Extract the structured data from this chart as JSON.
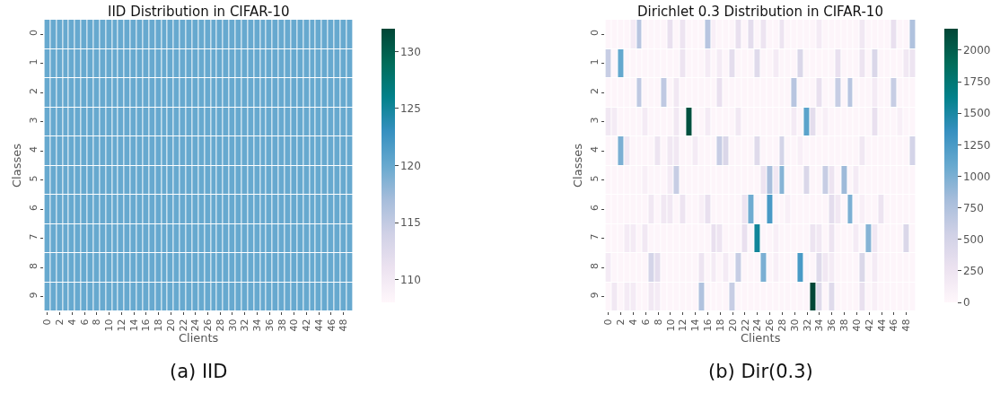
{
  "chart_data": [
    {
      "type": "heatmap",
      "title": "IID Distribution in CIFAR-10",
      "xlabel": "Clients",
      "ylabel": "Classes",
      "annotations": [
        "(a) IID"
      ],
      "categories": [
        "0",
        null,
        "2",
        null,
        "4",
        null,
        "6",
        null,
        "8",
        null,
        "10",
        null,
        "12",
        null,
        "14",
        null,
        "16",
        null,
        "18",
        null,
        "20",
        null,
        "22",
        null,
        "24",
        null,
        "26",
        null,
        "28",
        null,
        "30",
        null,
        "32",
        null,
        "34",
        null,
        "36",
        null,
        "38",
        null,
        "40",
        null,
        "42",
        null,
        "44",
        null,
        "46",
        null,
        "48",
        null
      ],
      "y_categories": [
        "0",
        "1",
        "2",
        "3",
        "4",
        "5",
        "6",
        "7",
        "8",
        "9"
      ],
      "clim": [
        108,
        132
      ],
      "cticks": [
        110,
        115,
        120,
        125,
        130
      ],
      "cells": [
        [
          120,
          120,
          120,
          120,
          120,
          120,
          120,
          120,
          120,
          120,
          120,
          120,
          120,
          120,
          120,
          120,
          120,
          120,
          120,
          120,
          120,
          120,
          120,
          120,
          120,
          120,
          120,
          120,
          120,
          120,
          120,
          120,
          120,
          120,
          120,
          120,
          120,
          120,
          120,
          120,
          120,
          120,
          120,
          120,
          120,
          120,
          120,
          120,
          120,
          120
        ],
        [
          120,
          120,
          120,
          120,
          120,
          120,
          120,
          120,
          120,
          120,
          120,
          120,
          120,
          120,
          120,
          120,
          120,
          120,
          120,
          120,
          120,
          120,
          120,
          120,
          120,
          120,
          120,
          120,
          120,
          120,
          120,
          120,
          120,
          120,
          120,
          120,
          120,
          120,
          120,
          120,
          120,
          120,
          120,
          120,
          120,
          120,
          120,
          120,
          120,
          120
        ],
        [
          120,
          120,
          120,
          120,
          120,
          120,
          120,
          120,
          120,
          120,
          120,
          120,
          120,
          120,
          120,
          120,
          120,
          120,
          120,
          120,
          120,
          120,
          120,
          120,
          120,
          120,
          120,
          120,
          120,
          120,
          120,
          120,
          120,
          120,
          120,
          120,
          120,
          120,
          120,
          120,
          120,
          120,
          120,
          120,
          120,
          120,
          120,
          120,
          120,
          120
        ],
        [
          120,
          120,
          120,
          120,
          120,
          120,
          120,
          120,
          120,
          120,
          120,
          120,
          120,
          120,
          120,
          120,
          120,
          120,
          120,
          120,
          120,
          120,
          120,
          120,
          120,
          120,
          120,
          120,
          120,
          120,
          120,
          120,
          120,
          120,
          120,
          120,
          120,
          120,
          120,
          120,
          120,
          120,
          120,
          120,
          120,
          120,
          120,
          120,
          120,
          120
        ],
        [
          120,
          120,
          120,
          120,
          120,
          120,
          120,
          120,
          120,
          120,
          120,
          120,
          120,
          120,
          120,
          120,
          120,
          120,
          120,
          120,
          120,
          120,
          120,
          120,
          120,
          120,
          120,
          120,
          120,
          120,
          120,
          120,
          120,
          120,
          120,
          120,
          120,
          120,
          120,
          120,
          120,
          120,
          120,
          120,
          120,
          120,
          120,
          120,
          120,
          120
        ],
        [
          120,
          120,
          120,
          120,
          120,
          120,
          120,
          120,
          120,
          120,
          120,
          120,
          120,
          120,
          120,
          120,
          120,
          120,
          120,
          120,
          120,
          120,
          120,
          120,
          120,
          120,
          120,
          120,
          120,
          120,
          120,
          120,
          120,
          120,
          120,
          120,
          120,
          120,
          120,
          120,
          120,
          120,
          120,
          120,
          120,
          120,
          120,
          120,
          120,
          120
        ],
        [
          120,
          120,
          120,
          120,
          120,
          120,
          120,
          120,
          120,
          120,
          120,
          120,
          120,
          120,
          120,
          120,
          120,
          120,
          120,
          120,
          120,
          120,
          120,
          120,
          120,
          120,
          120,
          120,
          120,
          120,
          120,
          120,
          120,
          120,
          120,
          120,
          120,
          120,
          120,
          120,
          120,
          120,
          120,
          120,
          120,
          120,
          120,
          120,
          120,
          120
        ],
        [
          120,
          120,
          120,
          120,
          120,
          120,
          120,
          120,
          120,
          120,
          120,
          120,
          120,
          120,
          120,
          120,
          120,
          120,
          120,
          120,
          120,
          120,
          120,
          120,
          120,
          120,
          120,
          120,
          120,
          120,
          120,
          120,
          120,
          120,
          120,
          120,
          120,
          120,
          120,
          120,
          120,
          120,
          120,
          120,
          120,
          120,
          120,
          120,
          120,
          120
        ],
        [
          120,
          120,
          120,
          120,
          120,
          120,
          120,
          120,
          120,
          120,
          120,
          120,
          120,
          120,
          120,
          120,
          120,
          120,
          120,
          120,
          120,
          120,
          120,
          120,
          120,
          120,
          120,
          120,
          120,
          120,
          120,
          120,
          120,
          120,
          120,
          120,
          120,
          120,
          120,
          120,
          120,
          120,
          120,
          120,
          120,
          120,
          120,
          120,
          120,
          120
        ],
        [
          120,
          120,
          120,
          120,
          120,
          120,
          120,
          120,
          120,
          120,
          120,
          120,
          120,
          120,
          120,
          120,
          120,
          120,
          120,
          120,
          120,
          120,
          120,
          120,
          120,
          120,
          120,
          120,
          120,
          120,
          120,
          120,
          120,
          120,
          120,
          120,
          120,
          120,
          120,
          120,
          120,
          120,
          120,
          120,
          120,
          120,
          120,
          120,
          120,
          120
        ]
      ]
    },
    {
      "type": "heatmap",
      "title": "Dirichlet 0.3 Distribution in CIFAR-10",
      "xlabel": "Clients",
      "ylabel": "Classes",
      "annotations": [
        "(b) Dir(0.3)"
      ],
      "categories": [
        "0",
        null,
        "2",
        null,
        "4",
        null,
        "6",
        null,
        "8",
        null,
        "10",
        null,
        "12",
        null,
        "14",
        null,
        "16",
        null,
        "18",
        null,
        "20",
        null,
        "22",
        null,
        "24",
        null,
        "26",
        null,
        "28",
        null,
        "30",
        null,
        "32",
        null,
        "34",
        null,
        "36",
        null,
        "38",
        null,
        "40",
        null,
        "42",
        null,
        "44",
        null,
        "46",
        null,
        "48",
        null
      ],
      "y_categories": [
        "0",
        "1",
        "2",
        "3",
        "4",
        "5",
        "6",
        "7",
        "8",
        "9"
      ],
      "clim": [
        0,
        2170
      ],
      "cticks": [
        0,
        250,
        500,
        750,
        1000,
        1250,
        1500,
        1750,
        2000
      ],
      "cells": [
        [
          30,
          30,
          30,
          30,
          150,
          700,
          30,
          30,
          30,
          30,
          300,
          30,
          250,
          30,
          30,
          30,
          700,
          100,
          30,
          30,
          30,
          300,
          30,
          350,
          30,
          250,
          30,
          30,
          250,
          30,
          30,
          30,
          30,
          30,
          150,
          30,
          30,
          30,
          30,
          30,
          30,
          200,
          30,
          30,
          30,
          30,
          300,
          30,
          30,
          750
        ],
        [
          600,
          30,
          1100,
          30,
          30,
          30,
          30,
          30,
          30,
          30,
          30,
          30,
          250,
          30,
          30,
          30,
          150,
          30,
          150,
          30,
          350,
          30,
          30,
          30,
          400,
          30,
          30,
          150,
          30,
          30,
          30,
          450,
          30,
          30,
          30,
          30,
          30,
          300,
          30,
          30,
          30,
          250,
          30,
          450,
          30,
          30,
          30,
          30,
          200,
          250
        ],
        [
          30,
          30,
          30,
          30,
          30,
          650,
          30,
          30,
          30,
          650,
          30,
          200,
          30,
          30,
          30,
          30,
          30,
          30,
          300,
          30,
          30,
          30,
          30,
          30,
          30,
          30,
          30,
          30,
          30,
          30,
          700,
          30,
          30,
          30,
          300,
          30,
          30,
          600,
          30,
          700,
          30,
          30,
          30,
          150,
          30,
          30,
          600,
          30,
          30,
          30
        ],
        [
          200,
          150,
          30,
          30,
          30,
          30,
          150,
          30,
          30,
          30,
          30,
          200,
          30,
          2100,
          30,
          30,
          150,
          30,
          30,
          30,
          30,
          200,
          30,
          30,
          30,
          30,
          30,
          30,
          30,
          30,
          150,
          30,
          1150,
          350,
          30,
          100,
          30,
          30,
          30,
          30,
          30,
          30,
          30,
          300,
          30,
          30,
          30,
          100,
          30,
          30
        ],
        [
          30,
          30,
          1000,
          200,
          30,
          30,
          30,
          30,
          250,
          30,
          200,
          200,
          30,
          30,
          150,
          30,
          30,
          30,
          600,
          450,
          30,
          30,
          30,
          30,
          400,
          30,
          30,
          30,
          500,
          30,
          30,
          100,
          30,
          30,
          30,
          30,
          30,
          30,
          30,
          30,
          30,
          200,
          30,
          30,
          30,
          30,
          30,
          30,
          30,
          500
        ],
        [
          30,
          30,
          30,
          30,
          30,
          30,
          100,
          30,
          30,
          30,
          150,
          600,
          30,
          30,
          30,
          30,
          30,
          30,
          30,
          30,
          30,
          30,
          30,
          30,
          30,
          250,
          800,
          200,
          950,
          30,
          30,
          30,
          450,
          30,
          30,
          600,
          250,
          30,
          850,
          30,
          150,
          30,
          30,
          30,
          30,
          30,
          30,
          30,
          30,
          30
        ],
        [
          30,
          30,
          30,
          30,
          30,
          30,
          30,
          200,
          30,
          200,
          200,
          30,
          250,
          30,
          30,
          100,
          300,
          30,
          30,
          30,
          30,
          30,
          250,
          1050,
          30,
          30,
          1250,
          30,
          30,
          100,
          30,
          30,
          30,
          30,
          30,
          30,
          350,
          200,
          30,
          1000,
          30,
          100,
          30,
          30,
          250,
          30,
          30,
          30,
          30,
          30
        ],
        [
          30,
          30,
          30,
          150,
          150,
          30,
          200,
          30,
          30,
          30,
          30,
          30,
          30,
          30,
          30,
          30,
          30,
          300,
          250,
          30,
          30,
          30,
          300,
          30,
          1550,
          30,
          30,
          100,
          30,
          30,
          30,
          30,
          30,
          250,
          200,
          30,
          250,
          30,
          30,
          30,
          150,
          30,
          950,
          200,
          30,
          30,
          30,
          30,
          450,
          30
        ],
        [
          150,
          30,
          30,
          30,
          30,
          30,
          30,
          500,
          350,
          30,
          30,
          30,
          30,
          30,
          30,
          250,
          30,
          150,
          30,
          150,
          30,
          600,
          30,
          30,
          30,
          1000,
          30,
          100,
          30,
          30,
          30,
          1250,
          30,
          30,
          400,
          200,
          150,
          30,
          30,
          30,
          30,
          450,
          30,
          150,
          30,
          30,
          30,
          30,
          30,
          30
        ],
        [
          30,
          200,
          30,
          150,
          150,
          30,
          30,
          200,
          150,
          30,
          30,
          30,
          30,
          30,
          30,
          750,
          30,
          30,
          30,
          30,
          600,
          30,
          30,
          30,
          30,
          30,
          30,
          30,
          30,
          30,
          30,
          30,
          30,
          2170,
          400,
          30,
          400,
          30,
          30,
          30,
          30,
          300,
          30,
          100,
          30,
          30,
          30,
          30,
          30,
          30
        ]
      ]
    }
  ]
}
